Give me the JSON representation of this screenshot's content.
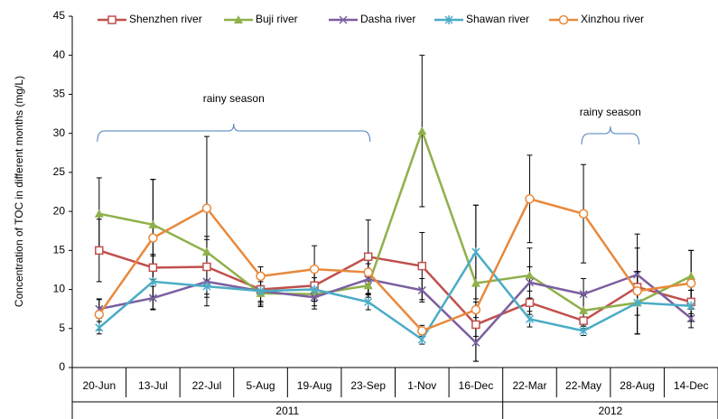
{
  "chart_data": {
    "type": "line",
    "ylabel": "Concentration of TOC in different months (mg/L)",
    "categories": [
      "20-Jun",
      "13-Jul",
      "22-Jul",
      "5-Aug",
      "19-Aug",
      "23-Sep",
      "1-Nov",
      "16-Dec",
      "22-Mar",
      "22-May",
      "28-Aug",
      "14-Dec"
    ],
    "groups": [
      {
        "label": "2011",
        "count": 8
      },
      {
        "label": "2012",
        "count": 4
      }
    ],
    "ylim": [
      0,
      45
    ],
    "yticks": [
      0,
      5,
      10,
      15,
      20,
      25,
      30,
      35,
      40,
      45
    ],
    "grid": false,
    "annotations": [
      "rainy season",
      "rainy season"
    ],
    "series": [
      {
        "name": "Shenzhen river",
        "color": "#c0504d",
        "marker": "square",
        "values": [
          15,
          12.8,
          12.9,
          10,
          10.5,
          14.2,
          13,
          5.5,
          8.3,
          6,
          10.3,
          8.4
        ],
        "errors": [
          4,
          1.5,
          3.5,
          1.5,
          2,
          4.7,
          4.3,
          1.5,
          1.5,
          1,
          2,
          1.5
        ]
      },
      {
        "name": "Buji river",
        "color": "#8fb04a",
        "marker": "triangle",
        "values": [
          19.7,
          18.3,
          14.8,
          9.5,
          9.4,
          10.5,
          30.3,
          10.8,
          11.8,
          7.3,
          8.3,
          11.7
        ],
        "errors": [
          4.6,
          5.8,
          2,
          1.5,
          1.5,
          1.5,
          9.7,
          10,
          3.5,
          2,
          4,
          3.3
        ]
      },
      {
        "name": "Dasha river",
        "color": "#7b5fa0",
        "marker": "x",
        "values": [
          7.5,
          8.9,
          11,
          9.8,
          9,
          11.3,
          9.9,
          3.2,
          10.9,
          9.4,
          11.9,
          6.3
        ],
        "errors": [
          1.2,
          1.5,
          2,
          1.5,
          1.5,
          2,
          1.5,
          2.4,
          2,
          2,
          5.2,
          1.2
        ]
      },
      {
        "name": "Shawan river",
        "color": "#4bacc6",
        "marker": "asterisk",
        "values": [
          5.1,
          11,
          10.4,
          9.8,
          10,
          8.4,
          3.6,
          14.8,
          6.2,
          4.7,
          8.3,
          7.9
        ],
        "errors": [
          0.8,
          3.5,
          2.5,
          2,
          1.5,
          1,
          0.6,
          6,
          1,
          0.6,
          4,
          2
        ]
      },
      {
        "name": "Xinzhou river",
        "color": "#e8893c",
        "marker": "circle",
        "values": [
          6.8,
          16.6,
          20.4,
          11.7,
          12.6,
          12.2,
          4.7,
          7.4,
          21.6,
          19.7,
          9.8,
          10.8
        ],
        "errors": [
          2,
          7.5,
          9.2,
          1.2,
          3,
          1.5,
          0.7,
          1,
          5.6,
          6.3,
          5.5,
          4.2
        ]
      }
    ]
  }
}
